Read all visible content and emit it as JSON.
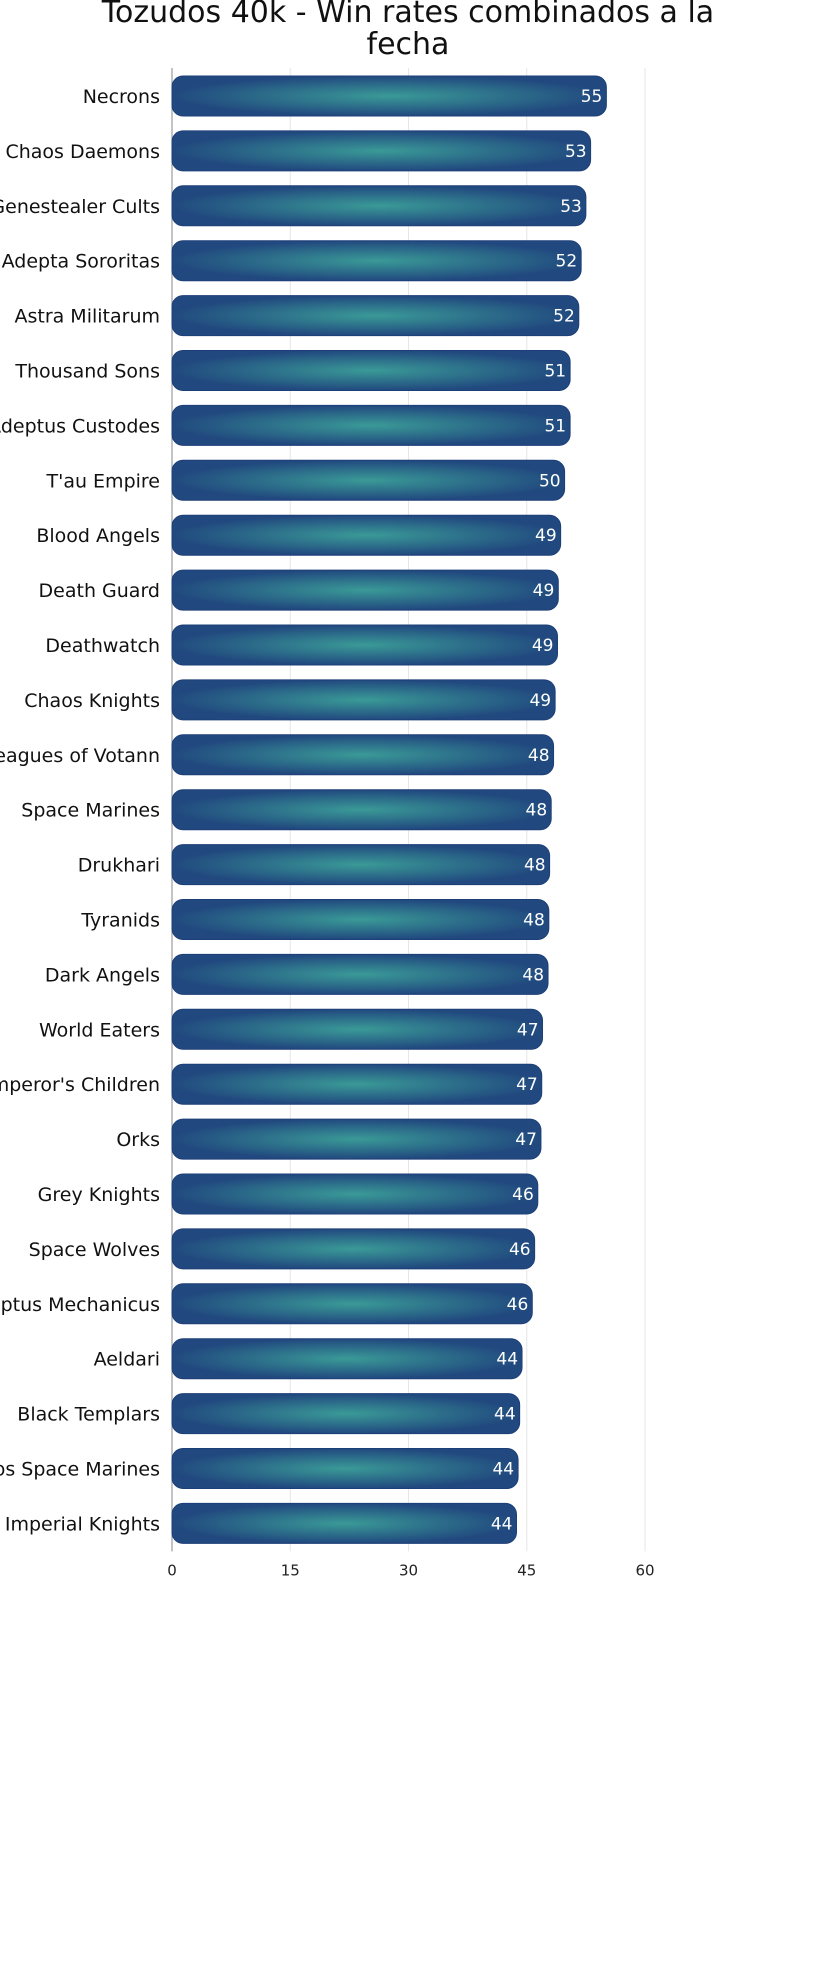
{
  "chart_data": {
    "type": "bar",
    "orientation": "horizontal",
    "title_lines": [
      "Tozudos 40k - Win rates combinados a la",
      "fecha"
    ],
    "categories": [
      "Necrons",
      "Chaos Daemons",
      "Genestealer Cults",
      "Adepta Sororitas",
      "Astra Militarum",
      "Thousand Sons",
      "Adeptus Custodes",
      "T'au Empire",
      "Blood Angels",
      "Death Guard",
      "Deathwatch",
      "Chaos Knights",
      "Leagues of Votann",
      "Space Marines",
      "Drukhari",
      "Tyranids",
      "Dark Angels",
      "World Eaters",
      "Emperor's Children",
      "Orks",
      "Grey Knights",
      "Space Wolves",
      "Adeptus Mechanicus",
      "Aeldari",
      "Black Templars",
      "Chaos Space Marines",
      "Imperial Knights"
    ],
    "values": [
      55.1,
      53.1,
      52.5,
      51.9,
      51.6,
      50.5,
      50.5,
      49.8,
      49.3,
      49.0,
      48.9,
      48.6,
      48.4,
      48.1,
      47.9,
      47.8,
      47.7,
      47.0,
      46.9,
      46.8,
      46.4,
      46.0,
      45.7,
      44.4,
      44.1,
      43.9,
      43.7
    ],
    "value_labels": [
      "55",
      "53",
      "53",
      "52",
      "52",
      "51",
      "51",
      "50",
      "49",
      "49",
      "49",
      "49",
      "48",
      "48",
      "48",
      "48",
      "48",
      "47",
      "47",
      "47",
      "46",
      "46",
      "46",
      "44",
      "44",
      "44",
      "44"
    ],
    "xlim": [
      0,
      60
    ],
    "xticks": [
      0,
      15,
      30,
      45,
      60
    ],
    "xtick_labels": [
      "0",
      "15",
      "30",
      "45",
      "60"
    ],
    "xlabel": "",
    "ylabel": "",
    "grid": true,
    "legend": "none"
  },
  "colors": {
    "bar_center": "#3a9a97",
    "bar_edge": "#21497f",
    "bar_outline": "#1d3f78",
    "value_text": "#ffffff",
    "grid": "#e6e6e6"
  }
}
